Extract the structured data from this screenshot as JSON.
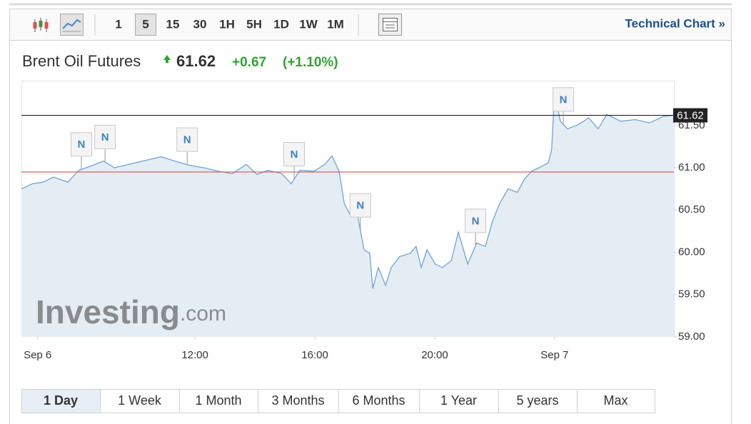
{
  "toolbar": {
    "intervals": [
      "1",
      "5",
      "15",
      "30",
      "1H",
      "5H",
      "1D",
      "1W",
      "1M"
    ],
    "selected": "5",
    "link": "Technical Chart »"
  },
  "header": {
    "name": "Brent Oil Futures",
    "price": 61.62,
    "change": "+0.67",
    "change_pct": "(+1.10%)"
  },
  "chart_data": {
    "type": "line",
    "x": [
      6.21,
      6.57,
      6.93,
      7.29,
      7.76,
      8.12,
      8.6,
      8.95,
      9.31,
      9.79,
      10.26,
      10.86,
      11.33,
      11.81,
      12.29,
      12.76,
      13.24,
      13.71,
      14.07,
      14.43,
      14.9,
      15.21,
      15.5,
      15.98,
      16.33,
      16.57,
      16.81,
      16.98,
      17.17,
      17.4,
      17.64,
      17.83,
      17.93,
      18.12,
      18.36,
      18.55,
      18.83,
      19.19,
      19.38,
      19.55,
      19.74,
      20.02,
      20.26,
      20.55,
      20.79,
      21.1,
      21.4,
      21.69,
      21.93,
      22.17,
      22.45,
      22.76,
      23.0,
      23.24,
      23.48,
      23.79,
      23.9,
      24.0,
      24.19,
      24.43,
      24.79,
      25.14,
      25.45,
      25.74,
      26.21,
      26.69,
      27.17,
      27.64,
      27.98
    ],
    "values": [
      60.75,
      60.81,
      60.83,
      60.89,
      60.83,
      60.97,
      61.03,
      61.08,
      61.0,
      61.04,
      61.08,
      61.13,
      61.08,
      61.03,
      61.0,
      60.96,
      60.93,
      61.04,
      60.92,
      60.97,
      60.93,
      60.81,
      60.97,
      60.96,
      61.04,
      61.14,
      60.96,
      60.58,
      60.45,
      60.49,
      60.03,
      59.99,
      59.57,
      59.82,
      59.61,
      59.82,
      59.95,
      59.99,
      60.07,
      59.82,
      60.03,
      59.86,
      59.82,
      59.9,
      60.24,
      59.86,
      60.11,
      60.07,
      60.37,
      60.58,
      60.75,
      60.71,
      60.87,
      60.96,
      61.0,
      61.06,
      61.21,
      61.89,
      61.55,
      61.46,
      61.51,
      61.59,
      61.46,
      61.63,
      61.55,
      61.57,
      61.53,
      61.61,
      61.62
    ],
    "color": "#6fa3d6",
    "area_color": "#e5edf4",
    "xlim": [
      6.21,
      27.98
    ],
    "ylim": [
      59,
      62.03
    ],
    "xticks": [
      {
        "value": 6.75,
        "label": "Sep 6"
      },
      {
        "value": 12,
        "label": "12:00"
      },
      {
        "value": 16,
        "label": "16:00"
      },
      {
        "value": 20,
        "label": "20:00"
      },
      {
        "value": 24,
        "label": "Sep 7"
      }
    ],
    "yticks": [
      {
        "value": 59,
        "label": "59.00"
      },
      {
        "value": 59.5,
        "label": "59.50"
      },
      {
        "value": 60,
        "label": "60.00"
      },
      {
        "value": 60.5,
        "label": "60.50"
      },
      {
        "value": 61,
        "label": "61.00"
      },
      {
        "value": 61.5,
        "label": "61.50"
      }
    ],
    "previous_close": 60.95,
    "previous_close_color": "#d9534f",
    "last_price": 61.62,
    "last_price_color": "#222222",
    "news": {
      "label": "N",
      "x": [
        8.21,
        9.0,
        11.74,
        15.31,
        17.52,
        21.36,
        24.29
      ]
    }
  },
  "watermark": {
    "brand": "Investing",
    "suffix": ".com"
  },
  "ranges": {
    "labels": [
      "1 Day",
      "1 Week",
      "1 Month",
      "3 Months",
      "6 Months",
      "1 Year",
      "5 years",
      "Max"
    ],
    "selected": "1 Day"
  }
}
